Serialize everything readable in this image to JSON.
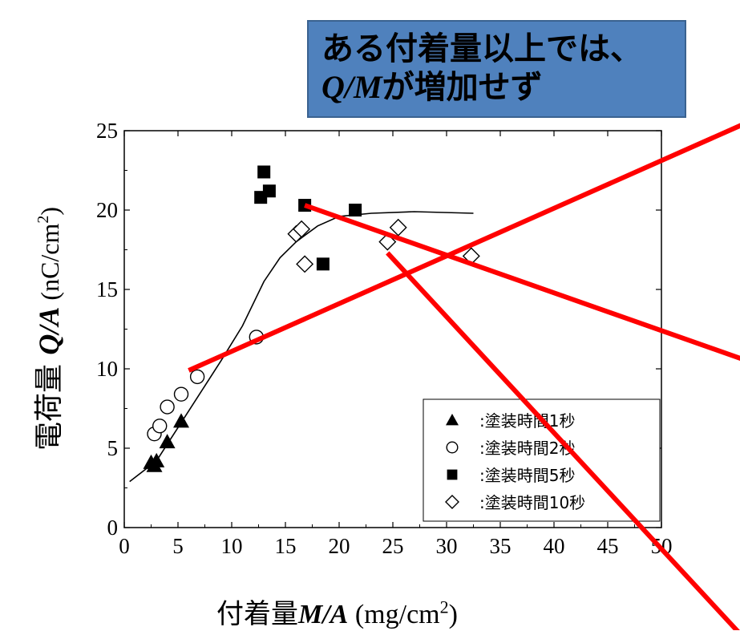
{
  "callout": {
    "line1": "ある付着量以上では、",
    "line2_em": "Q/M",
    "line2_rest": "が増加せず"
  },
  "x_label": {
    "jp": "付着量",
    "var": "M/A",
    "unit_pre": " (mg/cm",
    "unit_sup": "2",
    "unit_post": ")"
  },
  "y_label": {
    "jp": "電荷量 ",
    "var": "Q/A",
    "unit_pre": " (nC/cm",
    "unit_sup": "2",
    "unit_post": ")"
  },
  "chart_data": {
    "type": "scatter",
    "xlim": [
      0,
      50
    ],
    "ylim": [
      0,
      25
    ],
    "x_ticks": [
      0,
      5,
      10,
      15,
      20,
      25,
      30,
      35,
      40,
      45,
      50
    ],
    "y_ticks": [
      0,
      5,
      10,
      15,
      20,
      25
    ],
    "legend_position": "bottom-right",
    "series": [
      {
        "name": ":塗装時間1秒",
        "marker": "triangle",
        "points": [
          [
            2.5,
            4.1
          ],
          [
            2.8,
            3.9
          ],
          [
            3.0,
            4.2
          ],
          [
            4.0,
            5.4
          ],
          [
            5.3,
            6.7
          ]
        ]
      },
      {
        "name": ":塗装時間2秒",
        "marker": "circle",
        "points": [
          [
            2.8,
            5.9
          ],
          [
            3.3,
            6.4
          ],
          [
            4.0,
            7.6
          ],
          [
            5.3,
            8.4
          ],
          [
            6.8,
            9.5
          ],
          [
            12.3,
            12.0
          ]
        ]
      },
      {
        "name": ":塗装時間5秒",
        "marker": "square",
        "points": [
          [
            12.7,
            20.8
          ],
          [
            13.0,
            22.4
          ],
          [
            13.5,
            21.2
          ],
          [
            16.8,
            20.3
          ],
          [
            18.5,
            16.6
          ],
          [
            21.5,
            20.0
          ]
        ]
      },
      {
        "name": ":塗装時間10秒",
        "marker": "diamond",
        "points": [
          [
            16.0,
            18.5
          ],
          [
            16.5,
            18.8
          ],
          [
            16.8,
            16.6
          ],
          [
            24.5,
            18.0
          ],
          [
            25.5,
            18.9
          ],
          [
            32.3,
            17.1
          ]
        ]
      }
    ],
    "fit_curve": [
      [
        0.5,
        2.9
      ],
      [
        3,
        4.2
      ],
      [
        5,
        6.3
      ],
      [
        7,
        8.4
      ],
      [
        9,
        10.5
      ],
      [
        11,
        12.7
      ],
      [
        13,
        15.5
      ],
      [
        14.5,
        17.0
      ],
      [
        16,
        18.0
      ],
      [
        18,
        19.0
      ],
      [
        20,
        19.6
      ],
      [
        23,
        19.8
      ],
      [
        27,
        19.9
      ],
      [
        32.5,
        19.8
      ]
    ],
    "overlay_lines": [
      {
        "color": "#ff0000",
        "points": [
          [
            6.0,
            9.9
          ],
          [
            57.6,
            25.4
          ]
        ]
      },
      {
        "color": "#ff0000",
        "points": [
          [
            16.8,
            20.3
          ],
          [
            57.6,
            10.6
          ]
        ]
      },
      {
        "color": "#ff0000",
        "points": [
          [
            24.5,
            17.3
          ],
          [
            57.6,
            -6.9
          ]
        ]
      }
    ]
  }
}
